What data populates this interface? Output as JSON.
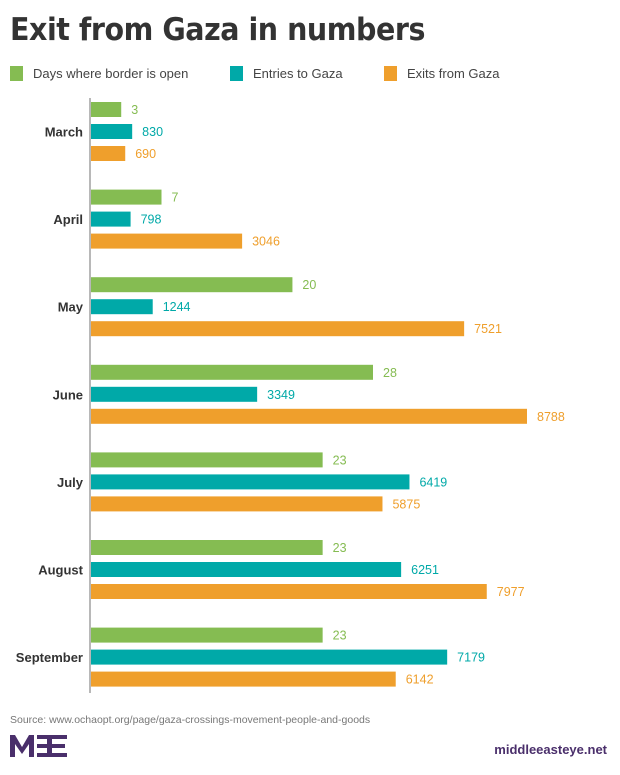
{
  "chart_data": {
    "type": "bar",
    "orientation": "horizontal",
    "title": "Exit from Gaza in numbers",
    "categories": [
      "March",
      "April",
      "May",
      "June",
      "July",
      "August",
      "September"
    ],
    "series": [
      {
        "name": "Days where border is open",
        "color": "#85bc52",
        "values": [
          3,
          7,
          20,
          28,
          23,
          23,
          23
        ]
      },
      {
        "name": "Entries to Gaza",
        "color": "#00a9a8",
        "values": [
          830,
          798,
          1244,
          3349,
          6419,
          6251,
          7179
        ]
      },
      {
        "name": "Exits from Gaza",
        "color": "#ef9f2c",
        "values": [
          690,
          3046,
          7521,
          8788,
          5875,
          7977,
          6142
        ]
      }
    ],
    "xlabel": "",
    "ylabel": "",
    "grid": false,
    "legend_position": "top",
    "data_labels": true,
    "source": "Source: www.ochaopt.org/page/gaza-crossings-movement-people-and-goods"
  },
  "footer": {
    "logo_text": "MEE",
    "site": "middleeasteye.net",
    "brand_color": "#4a2f6b"
  }
}
